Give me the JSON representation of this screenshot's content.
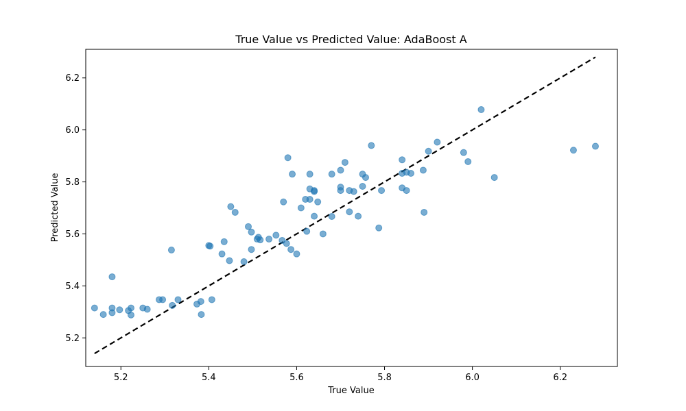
{
  "chart_data": {
    "type": "scatter",
    "title": "True Value vs Predicted Value: AdaBoost A",
    "xlabel": "True Value",
    "ylabel": "Predicted Value",
    "xlim": [
      5.12,
      6.33
    ],
    "ylim": [
      5.09,
      6.31
    ],
    "xticks": [
      5.2,
      5.4,
      5.6,
      5.8,
      6.0,
      6.2
    ],
    "yticks": [
      5.2,
      5.4,
      5.6,
      5.8,
      6.0,
      6.2
    ],
    "tick_labels_x": [
      "5.2",
      "5.4",
      "5.6",
      "5.8",
      "6.0",
      "6.2"
    ],
    "tick_labels_y": [
      "5.2",
      "5.4",
      "5.6",
      "5.8",
      "6.0",
      "6.2"
    ],
    "grid": false,
    "point_color": "#1f77b4",
    "reference_line": {
      "style": "dashed",
      "color": "#000000",
      "from": [
        5.14,
        5.14
      ],
      "to": [
        6.28,
        6.28
      ]
    },
    "points": [
      {
        "x": 5.14,
        "y": 5.315
      },
      {
        "x": 5.16,
        "y": 5.29
      },
      {
        "x": 5.18,
        "y": 5.435
      },
      {
        "x": 5.18,
        "y": 5.315
      },
      {
        "x": 5.18,
        "y": 5.297
      },
      {
        "x": 5.197,
        "y": 5.308
      },
      {
        "x": 5.217,
        "y": 5.305
      },
      {
        "x": 5.223,
        "y": 5.315
      },
      {
        "x": 5.223,
        "y": 5.288
      },
      {
        "x": 5.25,
        "y": 5.315
      },
      {
        "x": 5.26,
        "y": 5.31
      },
      {
        "x": 5.287,
        "y": 5.347
      },
      {
        "x": 5.295,
        "y": 5.347
      },
      {
        "x": 5.315,
        "y": 5.538
      },
      {
        "x": 5.317,
        "y": 5.325
      },
      {
        "x": 5.33,
        "y": 5.347
      },
      {
        "x": 5.373,
        "y": 5.33
      },
      {
        "x": 5.382,
        "y": 5.34
      },
      {
        "x": 5.383,
        "y": 5.29
      },
      {
        "x": 5.4,
        "y": 5.555
      },
      {
        "x": 5.403,
        "y": 5.553
      },
      {
        "x": 5.407,
        "y": 5.347
      },
      {
        "x": 5.43,
        "y": 5.523
      },
      {
        "x": 5.435,
        "y": 5.57
      },
      {
        "x": 5.447,
        "y": 5.497
      },
      {
        "x": 5.45,
        "y": 5.705
      },
      {
        "x": 5.46,
        "y": 5.683
      },
      {
        "x": 5.48,
        "y": 5.493
      },
      {
        "x": 5.49,
        "y": 5.628
      },
      {
        "x": 5.497,
        "y": 5.607
      },
      {
        "x": 5.497,
        "y": 5.54
      },
      {
        "x": 5.51,
        "y": 5.58
      },
      {
        "x": 5.513,
        "y": 5.587
      },
      {
        "x": 5.517,
        "y": 5.577
      },
      {
        "x": 5.537,
        "y": 5.58
      },
      {
        "x": 5.553,
        "y": 5.595
      },
      {
        "x": 5.567,
        "y": 5.575
      },
      {
        "x": 5.57,
        "y": 5.723
      },
      {
        "x": 5.577,
        "y": 5.563
      },
      {
        "x": 5.58,
        "y": 5.893
      },
      {
        "x": 5.587,
        "y": 5.54
      },
      {
        "x": 5.59,
        "y": 5.83
      },
      {
        "x": 5.6,
        "y": 5.523
      },
      {
        "x": 5.61,
        "y": 5.7
      },
      {
        "x": 5.62,
        "y": 5.733
      },
      {
        "x": 5.623,
        "y": 5.61
      },
      {
        "x": 5.63,
        "y": 5.83
      },
      {
        "x": 5.63,
        "y": 5.773
      },
      {
        "x": 5.63,
        "y": 5.733
      },
      {
        "x": 5.64,
        "y": 5.767
      },
      {
        "x": 5.64,
        "y": 5.763
      },
      {
        "x": 5.64,
        "y": 5.668
      },
      {
        "x": 5.648,
        "y": 5.723
      },
      {
        "x": 5.66,
        "y": 5.6
      },
      {
        "x": 5.68,
        "y": 5.83
      },
      {
        "x": 5.68,
        "y": 5.667
      },
      {
        "x": 5.7,
        "y": 5.845
      },
      {
        "x": 5.7,
        "y": 5.78
      },
      {
        "x": 5.7,
        "y": 5.767
      },
      {
        "x": 5.71,
        "y": 5.875
      },
      {
        "x": 5.72,
        "y": 5.767
      },
      {
        "x": 5.72,
        "y": 5.685
      },
      {
        "x": 5.73,
        "y": 5.763
      },
      {
        "x": 5.74,
        "y": 5.668
      },
      {
        "x": 5.75,
        "y": 5.83
      },
      {
        "x": 5.75,
        "y": 5.783
      },
      {
        "x": 5.757,
        "y": 5.817
      },
      {
        "x": 5.77,
        "y": 5.94
      },
      {
        "x": 5.787,
        "y": 5.623
      },
      {
        "x": 5.793,
        "y": 5.767
      },
      {
        "x": 5.84,
        "y": 5.885
      },
      {
        "x": 5.84,
        "y": 5.833
      },
      {
        "x": 5.84,
        "y": 5.777
      },
      {
        "x": 5.85,
        "y": 5.837
      },
      {
        "x": 5.85,
        "y": 5.767
      },
      {
        "x": 5.86,
        "y": 5.833
      },
      {
        "x": 5.888,
        "y": 5.845
      },
      {
        "x": 5.89,
        "y": 5.683
      },
      {
        "x": 5.9,
        "y": 5.918
      },
      {
        "x": 5.92,
        "y": 5.953
      },
      {
        "x": 5.98,
        "y": 5.913
      },
      {
        "x": 5.99,
        "y": 5.878
      },
      {
        "x": 6.02,
        "y": 6.078
      },
      {
        "x": 6.05,
        "y": 5.817
      },
      {
        "x": 6.23,
        "y": 5.922
      },
      {
        "x": 6.28,
        "y": 5.937
      }
    ]
  }
}
